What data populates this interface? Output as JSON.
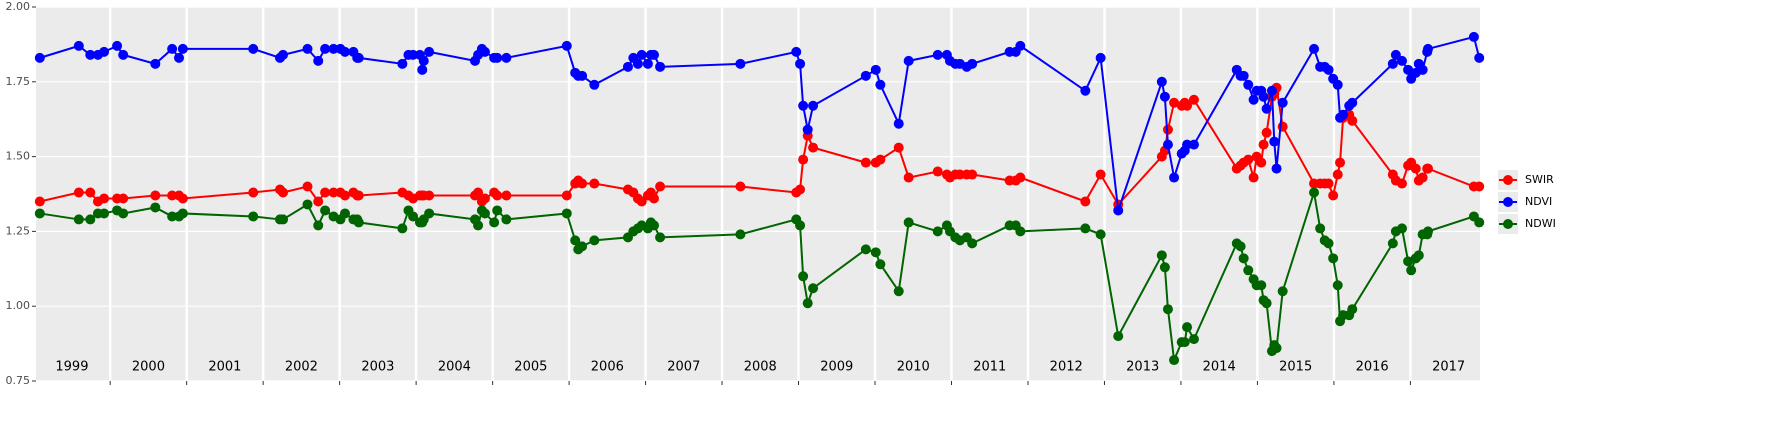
{
  "chart_data": {
    "type": "line",
    "x": [
      1999.08,
      1999.59,
      1999.74,
      1999.84,
      1999.92,
      2000.09,
      2000.17,
      2000.59,
      2000.81,
      2000.9,
      2000.95,
      2001.87,
      2002.22,
      2002.26,
      2002.58,
      2002.72,
      2002.81,
      2002.92,
      2003.01,
      2003.07,
      2003.18,
      2003.23,
      2003.25,
      2003.82,
      2003.9,
      2003.96,
      2004.05,
      2004.08,
      2004.1,
      2004.17,
      2004.77,
      2004.81,
      2004.86,
      2004.9,
      2005.02,
      2005.06,
      2005.18,
      2005.97,
      2006.08,
      2006.12,
      2006.17,
      2006.33,
      2006.77,
      2006.84,
      2006.9,
      2006.95,
      2007.03,
      2007.07,
      2007.11,
      2007.19,
      2008.24,
      2008.97,
      2009.02,
      2009.06,
      2009.12,
      2009.19,
      2009.88,
      2010.01,
      2010.07,
      2010.31,
      2010.44,
      2010.82,
      2010.94,
      2010.98,
      2011.05,
      2011.11,
      2011.2,
      2011.27,
      2011.76,
      2011.84,
      2011.9,
      2012.75,
      2012.95,
      2013.18,
      2013.75,
      2013.79,
      2013.83,
      2013.91,
      2014.01,
      2014.05,
      2014.08,
      2014.17,
      2014.73,
      2014.78,
      2014.82,
      2014.88,
      2014.95,
      2014.99,
      2015.05,
      2015.08,
      2015.12,
      2015.19,
      2015.22,
      2015.25,
      2015.33,
      2015.74,
      2015.82,
      2015.88,
      2015.93,
      2015.99,
      2016.05,
      2016.08,
      2016.12,
      2016.2,
      2016.24,
      2016.77,
      2016.81,
      2016.89,
      2016.97,
      2017.01,
      2017.07,
      2017.11,
      2017.16,
      2017.22,
      2017.23,
      2017.83,
      2017.9
    ],
    "series": [
      {
        "name": "SWIR",
        "color": "#ff0000",
        "values": [
          1.35,
          1.38,
          1.38,
          1.35,
          1.36,
          1.36,
          1.36,
          1.37,
          1.37,
          1.37,
          1.36,
          1.38,
          1.39,
          1.38,
          1.4,
          1.35,
          1.38,
          1.38,
          1.38,
          1.37,
          1.38,
          1.37,
          1.37,
          1.38,
          1.37,
          1.36,
          1.37,
          1.37,
          1.37,
          1.37,
          1.37,
          1.38,
          1.35,
          1.36,
          1.38,
          1.37,
          1.37,
          1.37,
          1.41,
          1.42,
          1.41,
          1.41,
          1.39,
          1.38,
          1.36,
          1.35,
          1.37,
          1.38,
          1.36,
          1.4,
          1.4,
          1.38,
          1.39,
          1.49,
          1.57,
          1.53,
          1.48,
          1.48,
          1.49,
          1.53,
          1.43,
          1.45,
          1.44,
          1.43,
          1.44,
          1.44,
          1.44,
          1.44,
          1.42,
          1.42,
          1.43,
          1.35,
          1.44,
          1.34,
          1.5,
          1.52,
          1.59,
          1.68,
          1.67,
          1.68,
          1.67,
          1.69,
          1.46,
          1.47,
          1.48,
          1.49,
          1.43,
          1.5,
          1.48,
          1.54,
          1.58,
          1.7,
          1.71,
          1.73,
          1.6,
          1.41,
          1.41,
          1.41,
          1.41,
          1.37,
          1.44,
          1.48,
          1.63,
          1.64,
          1.62,
          1.44,
          1.42,
          1.41,
          1.47,
          1.48,
          1.46,
          1.42,
          1.43,
          1.46,
          1.46,
          1.4,
          1.4
        ]
      },
      {
        "name": "NDVI",
        "color": "#0000ff",
        "values": [
          1.83,
          1.87,
          1.84,
          1.84,
          1.85,
          1.87,
          1.84,
          1.81,
          1.86,
          1.83,
          1.86,
          1.86,
          1.83,
          1.84,
          1.86,
          1.82,
          1.86,
          1.86,
          1.86,
          1.85,
          1.85,
          1.83,
          1.83,
          1.81,
          1.84,
          1.84,
          1.84,
          1.79,
          1.82,
          1.85,
          1.82,
          1.84,
          1.86,
          1.85,
          1.83,
          1.83,
          1.83,
          1.87,
          1.78,
          1.77,
          1.77,
          1.74,
          1.8,
          1.83,
          1.81,
          1.84,
          1.81,
          1.84,
          1.84,
          1.8,
          1.81,
          1.85,
          1.81,
          1.67,
          1.59,
          1.67,
          1.77,
          1.79,
          1.74,
          1.61,
          1.82,
          1.84,
          1.84,
          1.82,
          1.81,
          1.81,
          1.8,
          1.81,
          1.85,
          1.85,
          1.87,
          1.72,
          1.83,
          1.32,
          1.75,
          1.7,
          1.54,
          1.43,
          1.51,
          1.52,
          1.54,
          1.54,
          1.79,
          1.77,
          1.77,
          1.74,
          1.69,
          1.72,
          1.72,
          1.7,
          1.66,
          1.72,
          1.55,
          1.46,
          1.68,
          1.86,
          1.8,
          1.8,
          1.79,
          1.76,
          1.74,
          1.63,
          1.64,
          1.67,
          1.68,
          1.81,
          1.84,
          1.82,
          1.79,
          1.76,
          1.78,
          1.81,
          1.79,
          1.85,
          1.86,
          1.9,
          1.83
        ]
      },
      {
        "name": "NDWI",
        "color": "#006400",
        "values": [
          1.31,
          1.29,
          1.29,
          1.31,
          1.31,
          1.32,
          1.31,
          1.33,
          1.3,
          1.3,
          1.31,
          1.3,
          1.29,
          1.29,
          1.34,
          1.27,
          1.32,
          1.3,
          1.29,
          1.31,
          1.29,
          1.29,
          1.28,
          1.26,
          1.32,
          1.3,
          1.28,
          1.28,
          1.29,
          1.31,
          1.29,
          1.27,
          1.32,
          1.31,
          1.28,
          1.32,
          1.29,
          1.31,
          1.22,
          1.19,
          1.2,
          1.22,
          1.23,
          1.25,
          1.26,
          1.27,
          1.26,
          1.28,
          1.27,
          1.23,
          1.24,
          1.29,
          1.27,
          1.1,
          1.01,
          1.06,
          1.19,
          1.18,
          1.14,
          1.05,
          1.28,
          1.25,
          1.27,
          1.25,
          1.23,
          1.22,
          1.23,
          1.21,
          1.27,
          1.27,
          1.25,
          1.26,
          1.24,
          0.9,
          1.17,
          1.13,
          0.99,
          0.82,
          0.88,
          0.88,
          0.93,
          0.89,
          1.21,
          1.2,
          1.16,
          1.12,
          1.09,
          1.07,
          1.07,
          1.02,
          1.01,
          0.85,
          0.87,
          0.86,
          1.05,
          1.38,
          1.26,
          1.22,
          1.21,
          1.16,
          1.07,
          0.95,
          0.97,
          0.97,
          0.99,
          1.21,
          1.25,
          1.26,
          1.15,
          1.12,
          1.16,
          1.17,
          1.24,
          1.24,
          1.25,
          1.3,
          1.28
        ]
      }
    ],
    "xlim": [
      1999.03,
      2017.91
    ],
    "xticks": [
      {
        "value": 1999,
        "label": "1999"
      },
      {
        "value": 2000,
        "label": "2000"
      },
      {
        "value": 2001,
        "label": "2001"
      },
      {
        "value": 2002,
        "label": "2002"
      },
      {
        "value": 2003,
        "label": "2003"
      },
      {
        "value": 2004,
        "label": "2004"
      },
      {
        "value": 2005,
        "label": "2005"
      },
      {
        "value": 2006,
        "label": "2006"
      },
      {
        "value": 2007,
        "label": "2007"
      },
      {
        "value": 2008,
        "label": "2008"
      },
      {
        "value": 2009,
        "label": "2009"
      },
      {
        "value": 2010,
        "label": "2010"
      },
      {
        "value": 2011,
        "label": "2011"
      },
      {
        "value": 2012,
        "label": "2012"
      },
      {
        "value": 2013,
        "label": "2013"
      },
      {
        "value": 2014,
        "label": "2014"
      },
      {
        "value": 2015,
        "label": "2015"
      },
      {
        "value": 2016,
        "label": "2016"
      },
      {
        "value": 2017,
        "label": "2017"
      }
    ],
    "ylim": [
      0.75,
      2
    ],
    "yticks": [
      {
        "value": 0.75,
        "label": "0.75"
      },
      {
        "value": 1,
        "label": "1.00"
      },
      {
        "value": 1.25,
        "label": "1.25"
      },
      {
        "value": 1.5,
        "label": "1.50"
      },
      {
        "value": 1.75,
        "label": "1.75"
      },
      {
        "value": 2,
        "label": "2.00"
      }
    ],
    "grid": true,
    "legend": "right"
  }
}
